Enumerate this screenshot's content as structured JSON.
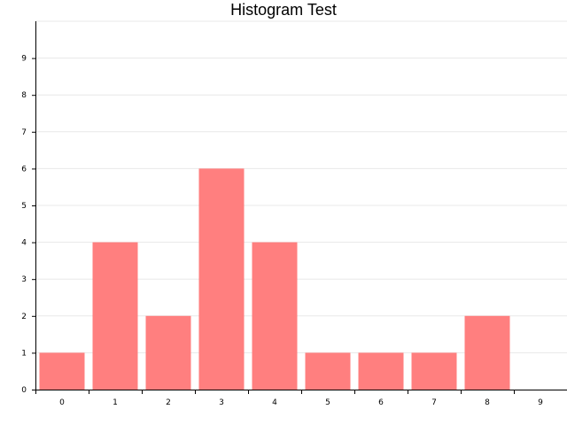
{
  "chart_data": {
    "type": "bar",
    "title": "Histogram Test",
    "xlabel": "",
    "ylabel": "",
    "categories": [
      "0",
      "1",
      "2",
      "3",
      "4",
      "5",
      "6",
      "7",
      "8",
      "9"
    ],
    "values": [
      1,
      4,
      2,
      6,
      4,
      1,
      1,
      1,
      2,
      0
    ],
    "ylim": [
      0,
      10
    ],
    "y_ticks": [
      0,
      1,
      2,
      3,
      4,
      5,
      6,
      7,
      8,
      9
    ],
    "grid": true,
    "legend": "none",
    "bar_color": "#ff7f7f",
    "grid_color": "#e8e8e8",
    "axis_color": "#000000"
  }
}
